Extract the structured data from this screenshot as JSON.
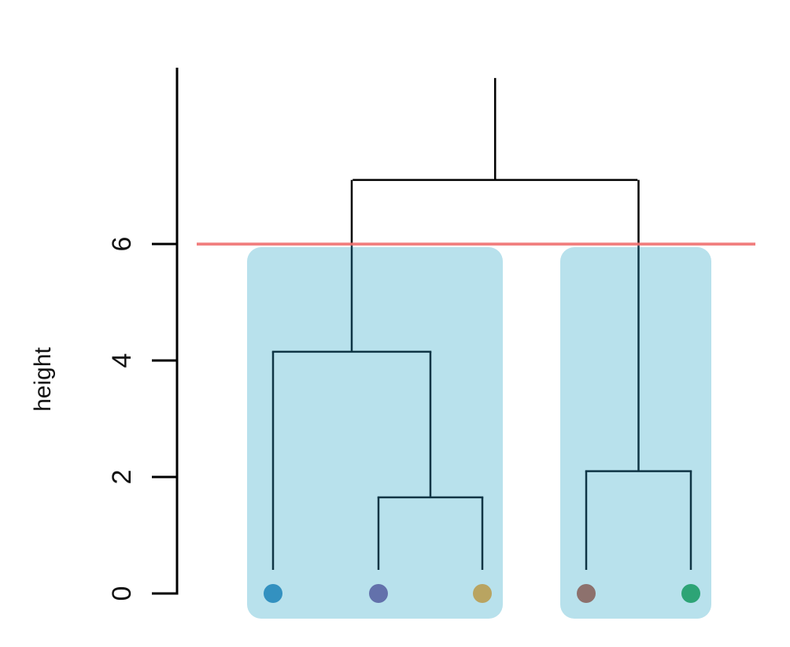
{
  "chart_data": {
    "type": "dendrogram",
    "title": "",
    "ylabel": "height",
    "xlabel": "",
    "ylim": [
      0,
      8.8
    ],
    "y_ticks": [
      0,
      2,
      4,
      6
    ],
    "leaves": [
      {
        "color": "#2b8cbe"
      },
      {
        "color": "#5e6aa8"
      },
      {
        "color": "#b8a05a"
      },
      {
        "color": "#8a6a66"
      },
      {
        "color": "#25a070"
      }
    ],
    "merges": [
      {
        "left": 1,
        "right": 2,
        "height": 1.65
      },
      {
        "left": 3,
        "right": 4,
        "height": 2.1
      },
      {
        "left": 0,
        "right": 5,
        "height": 4.15
      },
      {
        "left": 6,
        "right": 7,
        "height": 7.1
      }
    ],
    "top_stem_height": 8.85,
    "cut_height": 6.0,
    "cut_color": "#f07070",
    "cluster_fill": "#b8e1ec",
    "clusters": [
      {
        "leaves": [
          0,
          1,
          2
        ]
      },
      {
        "leaves": [
          3,
          4
        ]
      }
    ],
    "link_color_inside": "#0f3545",
    "link_color_outside": "#000000"
  }
}
